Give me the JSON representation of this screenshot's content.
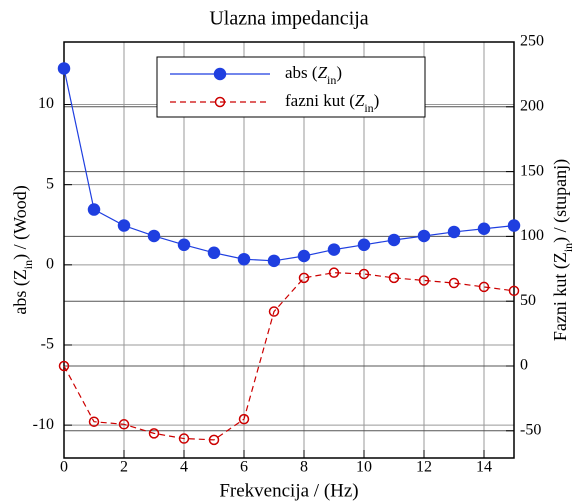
{
  "chart_data": {
    "type": "line",
    "title": "Ulazna impedancija",
    "xlabel": "Frekvencija / (Hz)",
    "ylabel": [
      {
        "text": "abs (Z"
      },
      {
        "text": "in",
        "style": "sub"
      },
      {
        "text": ") / (Wood)"
      }
    ],
    "y2label": [
      {
        "text": "Fazni kut (Z"
      },
      {
        "text": "in",
        "style": "sub"
      },
      {
        "text": ") / (stupanj)"
      }
    ],
    "x": [
      0,
      1,
      2,
      3,
      4,
      5,
      6,
      7,
      8,
      9,
      10,
      11,
      12,
      13,
      14,
      15
    ],
    "series": [
      {
        "name": [
          {
            "text": "abs ("
          },
          {
            "text": "Z",
            "style": "italic"
          },
          {
            "text": "in",
            "style": "sub"
          },
          {
            "text": ")"
          }
        ],
        "color": "#1f3fe0",
        "marker": "filled",
        "dash": false,
        "axis": "y",
        "values": [
          12.25,
          3.45,
          2.45,
          1.8,
          1.25,
          0.75,
          0.35,
          0.25,
          0.55,
          0.95,
          1.25,
          1.55,
          1.8,
          2.05,
          2.25,
          2.45
        ]
      },
      {
        "name": [
          {
            "text": "fazni kut ("
          },
          {
            "text": "Z",
            "style": "italic"
          },
          {
            "text": "in",
            "style": "sub"
          },
          {
            "text": ")"
          }
        ],
        "color": "#cc0000",
        "marker": "hollow",
        "dash": true,
        "axis": "y2",
        "values": [
          0,
          -43,
          -45,
          -52,
          -56,
          -57,
          -41,
          42,
          68,
          72,
          71,
          68,
          66,
          64,
          61,
          58
        ]
      }
    ],
    "xlim": [
      0,
      15
    ],
    "xticks": [
      0,
      2,
      4,
      6,
      8,
      10,
      12,
      14
    ],
    "ylim": [
      -12.05,
      13.9
    ],
    "yticks": [
      -10,
      -5,
      0,
      5,
      10
    ],
    "y2lim": [
      -71,
      250
    ],
    "y2ticks": [
      -50,
      0,
      50,
      100,
      150,
      200,
      250
    ],
    "grid": true,
    "legend": "top"
  }
}
